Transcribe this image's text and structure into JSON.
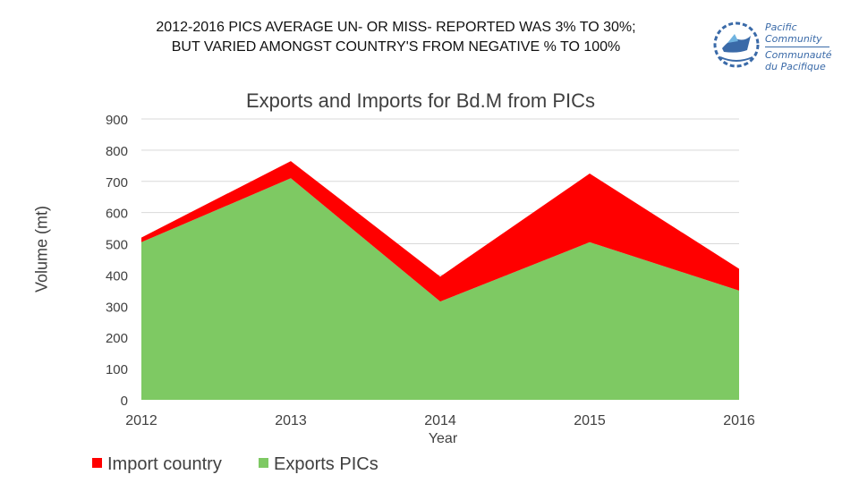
{
  "slide": {
    "title_line1": "2012-2016 PICS AVERAGE UN- OR MISS- REPORTED WAS 3% TO 30%;",
    "title_line2": "BUT VARIED AMONGST COUNTRY'S FROM NEGATIVE % TO 100%"
  },
  "logo": {
    "line1": "Pacific",
    "line2": "Community",
    "line3": "Communauté",
    "line4": "du Pacifique",
    "color": "#3a6aa8"
  },
  "chart_data": {
    "type": "area",
    "title": "Exports and Imports for Bd.M  from PICs",
    "xlabel": "Year",
    "ylabel": "Volume (mt)",
    "categories": [
      "2012",
      "2013",
      "2014",
      "2015",
      "2016"
    ],
    "ylim": [
      0,
      900
    ],
    "yticks": [
      "0",
      "100",
      "200",
      "300",
      "400",
      "500",
      "600",
      "700",
      "800",
      "900"
    ],
    "stacked": true,
    "grid": true,
    "legend_position": "bottom-left",
    "series": [
      {
        "name": "Exports PICs",
        "color": "#7ec963",
        "values": [
          505,
          710,
          315,
          505,
          350
        ]
      },
      {
        "name": "Import country",
        "color": "#ff0000",
        "values": [
          15,
          55,
          80,
          220,
          70
        ]
      }
    ]
  }
}
